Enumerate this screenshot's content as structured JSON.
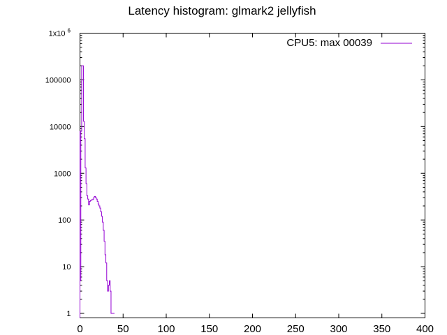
{
  "chart_data": {
    "type": "line",
    "title": "Latency histogram:  glmark2 jellyfish",
    "xlabel": "",
    "ylabel": "",
    "xlim": [
      0,
      400
    ],
    "ylim": [
      0.8,
      1000000
    ],
    "y_scale": "log",
    "x_ticks": [
      "0",
      "50",
      "100",
      "150",
      "200",
      "250",
      "300",
      "350",
      "400"
    ],
    "y_ticks": [
      {
        "value": 1,
        "label": "1"
      },
      {
        "value": 10,
        "label": "10"
      },
      {
        "value": 100,
        "label": "100"
      },
      {
        "value": 1000,
        "label": "1000"
      },
      {
        "value": 10000,
        "label": "10000"
      },
      {
        "value": 100000,
        "label": "100000"
      },
      {
        "value": 1000000,
        "label": "1x10",
        "sup": "6"
      }
    ],
    "legend_position": "top-right",
    "grid": false,
    "series": [
      {
        "name": "CPU5: max 00039",
        "color": "#9400d3",
        "x": [
          0,
          1,
          2,
          3,
          4,
          5,
          6,
          7,
          8,
          9,
          10,
          11,
          12,
          13,
          14,
          15,
          16,
          17,
          18,
          19,
          20,
          21,
          22,
          23,
          24,
          25,
          26,
          27,
          28,
          29,
          30,
          31,
          32,
          33,
          34,
          35,
          36,
          37,
          38,
          39
        ],
        "y": [
          5,
          8000,
          200000,
          200000,
          13000,
          5500,
          1300,
          600,
          330,
          280,
          210,
          250,
          260,
          270,
          270,
          280,
          310,
          320,
          300,
          280,
          250,
          220,
          200,
          180,
          150,
          120,
          90,
          60,
          35,
          18,
          12,
          5,
          3,
          4,
          5,
          3,
          1,
          1,
          1,
          1
        ]
      }
    ]
  }
}
